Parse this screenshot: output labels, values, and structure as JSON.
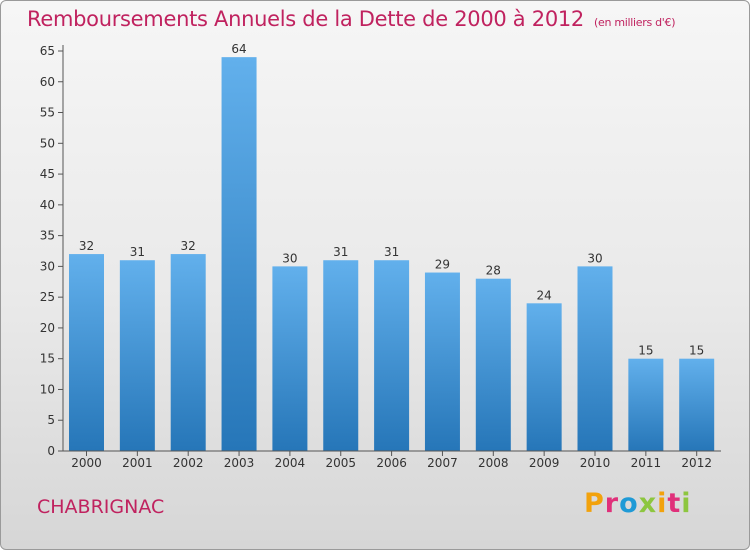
{
  "title": "Remboursements Annuels de la Dette de 2000 à 2012",
  "subtitle": "(en milliers d'€)",
  "commune": "CHABRIGNAC",
  "brand": {
    "text": "Proxiti",
    "letter_colors": [
      "#f2a20c",
      "#e0307a",
      "#1f9ad6",
      "#8dc63f",
      "#f2a20c",
      "#e0307a",
      "#8dc63f"
    ]
  },
  "colors": {
    "bar_top": "#62b0ec",
    "bar_bottom": "#2676b8",
    "title": "#c0225f",
    "axis": "#555555"
  },
  "chart_data": {
    "type": "bar",
    "title": "Remboursements Annuels de la Dette de 2000 à 2012",
    "subtitle": "(en milliers d'€)",
    "categories": [
      "2000",
      "2001",
      "2002",
      "2003",
      "2004",
      "2005",
      "2006",
      "2007",
      "2008",
      "2009",
      "2010",
      "2011",
      "2012"
    ],
    "values": [
      32,
      31,
      32,
      64,
      30,
      31,
      31,
      29,
      28,
      24,
      30,
      15,
      15
    ],
    "ylim": [
      0,
      65
    ],
    "yticks": [
      0,
      5,
      10,
      15,
      20,
      25,
      30,
      35,
      40,
      45,
      50,
      55,
      60,
      65
    ],
    "xlabel": "",
    "ylabel": "",
    "grid": false,
    "legend": "none"
  }
}
